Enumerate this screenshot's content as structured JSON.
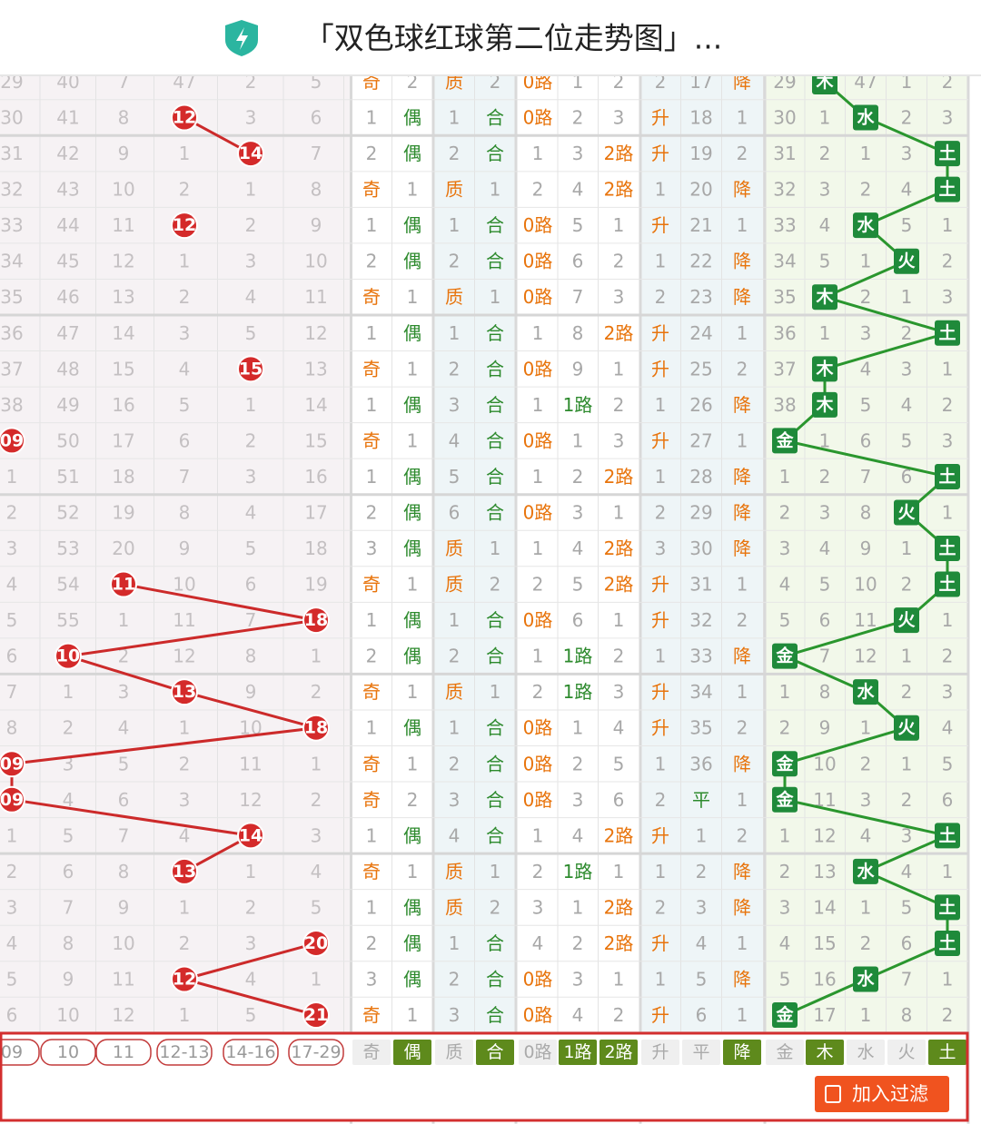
{
  "header": {
    "title": "「双色球红球第二位走势图」..."
  },
  "table": {
    "rows": [
      [
        "29",
        "40",
        "7",
        "47",
        "2",
        "5",
        "奇",
        "2",
        "质",
        "2",
        "0路",
        "1",
        "2",
        "2",
        "17",
        "降",
        "29",
        "木",
        "47",
        "1",
        "2"
      ],
      [
        "30",
        "41",
        "8",
        {
          "text": "12",
          "ball": true
        },
        "3",
        "6",
        "1",
        "偶",
        "1",
        "合",
        "0路",
        "2",
        "3",
        "升",
        "18",
        "1",
        "30",
        "1",
        "水",
        "2",
        "3"
      ],
      [
        "31",
        "42",
        "9",
        "1",
        {
          "text": "14",
          "ball": true
        },
        "7",
        "2",
        "偶",
        "2",
        "合",
        "1",
        "3",
        "2路",
        "升",
        "19",
        "2",
        "31",
        "2",
        "1",
        "3",
        "土"
      ],
      [
        "32",
        "43",
        "10",
        "2",
        "1",
        "8",
        "奇",
        "1",
        "质",
        "1",
        "2",
        "4",
        "2路",
        "1",
        "20",
        "降",
        "32",
        "3",
        "2",
        "4",
        "土"
      ],
      [
        "33",
        "44",
        "11",
        {
          "text": "12",
          "ball": true
        },
        "2",
        "9",
        "1",
        "偶",
        "1",
        "合",
        "0路",
        "5",
        "1",
        "升",
        "21",
        "1",
        "33",
        "4",
        "水",
        "5",
        "1"
      ],
      [
        "34",
        "45",
        "12",
        "1",
        "3",
        "10",
        "2",
        "偶",
        "2",
        "合",
        "0路",
        "6",
        "2",
        "1",
        "22",
        "降",
        "34",
        "5",
        "1",
        "火",
        "2"
      ],
      [
        "35",
        "46",
        "13",
        "2",
        "4",
        "11",
        "奇",
        "1",
        "质",
        "1",
        "0路",
        "7",
        "3",
        "2",
        "23",
        "降",
        "35",
        "木",
        "2",
        "1",
        "3"
      ],
      [
        "36",
        "47",
        "14",
        "3",
        "5",
        "12",
        "1",
        "偶",
        "1",
        "合",
        "1",
        "8",
        "2路",
        "升",
        "24",
        "1",
        "36",
        "1",
        "3",
        "2",
        "土"
      ],
      [
        "37",
        "48",
        "15",
        "4",
        {
          "text": "15",
          "ball": true
        },
        "13",
        "奇",
        "1",
        "2",
        "合",
        "0路",
        "9",
        "1",
        "升",
        "25",
        "2",
        "37",
        "木",
        "4",
        "3",
        "1"
      ],
      [
        "38",
        "49",
        "16",
        "5",
        "1",
        "14",
        "1",
        "偶",
        "3",
        "合",
        "1",
        "1路",
        "2",
        "1",
        "26",
        "降",
        "38",
        "木",
        "5",
        "4",
        "2"
      ],
      [
        {
          "text": "09",
          "ball": true
        },
        "50",
        "17",
        "6",
        "2",
        "15",
        "奇",
        "1",
        "4",
        "合",
        "0路",
        "1",
        "3",
        "升",
        "27",
        "1",
        "金",
        "1",
        "6",
        "5",
        "3"
      ],
      [
        "1",
        "51",
        "18",
        "7",
        "3",
        "16",
        "1",
        "偶",
        "5",
        "合",
        "1",
        "2",
        "2路",
        "1",
        "28",
        "降",
        "1",
        "2",
        "7",
        "6",
        "土"
      ],
      [
        "2",
        "52",
        "19",
        "8",
        "4",
        "17",
        "2",
        "偶",
        "6",
        "合",
        "0路",
        "3",
        "1",
        "2",
        "29",
        "降",
        "2",
        "3",
        "8",
        "火",
        "1"
      ],
      [
        "3",
        "53",
        "20",
        "9",
        "5",
        "18",
        "3",
        "偶",
        "质",
        "1",
        "1",
        "4",
        "2路",
        "3",
        "30",
        "降",
        "3",
        "4",
        "9",
        "1",
        "土"
      ],
      [
        "4",
        "54",
        {
          "text": "11",
          "ball": true
        },
        "10",
        "6",
        "19",
        "奇",
        "1",
        "质",
        "2",
        "2",
        "5",
        "2路",
        "升",
        "31",
        "1",
        "4",
        "5",
        "10",
        "2",
        "土"
      ],
      [
        "5",
        "55",
        "1",
        "11",
        "7",
        {
          "text": "18",
          "ball": true
        },
        "1",
        "偶",
        "1",
        "合",
        "0路",
        "6",
        "1",
        "升",
        "32",
        "2",
        "5",
        "6",
        "11",
        "火",
        "1"
      ],
      [
        "6",
        {
          "text": "10",
          "ball": true
        },
        "2",
        "12",
        "8",
        "1",
        "2",
        "偶",
        "2",
        "合",
        "1",
        "1路",
        "2",
        "1",
        "33",
        "降",
        "金",
        "7",
        "12",
        "1",
        "2"
      ],
      [
        "7",
        "1",
        "3",
        {
          "text": "13",
          "ball": true
        },
        "9",
        "2",
        "奇",
        "1",
        "质",
        "1",
        "2",
        "1路",
        "3",
        "升",
        "34",
        "1",
        "1",
        "8",
        "水",
        "2",
        "3"
      ],
      [
        "8",
        "2",
        "4",
        "1",
        "10",
        {
          "text": "18",
          "ball": true
        },
        "1",
        "偶",
        "1",
        "合",
        "0路",
        "1",
        "4",
        "升",
        "35",
        "2",
        "2",
        "9",
        "1",
        "火",
        "4"
      ],
      [
        {
          "text": "09",
          "ball": true
        },
        "3",
        "5",
        "2",
        "11",
        "1",
        "奇",
        "1",
        "2",
        "合",
        "0路",
        "2",
        "5",
        "1",
        "36",
        "降",
        "金",
        "10",
        "2",
        "1",
        "5"
      ],
      [
        {
          "text": "09",
          "ball": true
        },
        "4",
        "6",
        "3",
        "12",
        "2",
        "奇",
        "2",
        "3",
        "合",
        "0路",
        "3",
        "6",
        "2",
        "平",
        "1",
        "金",
        "11",
        "3",
        "2",
        "6"
      ],
      [
        "1",
        "5",
        "7",
        "4",
        {
          "text": "14",
          "ball": true
        },
        "3",
        "1",
        "偶",
        "4",
        "合",
        "1",
        "4",
        "2路",
        "升",
        "1",
        "2",
        "1",
        "12",
        "4",
        "3",
        "土"
      ],
      [
        "2",
        "6",
        "8",
        {
          "text": "13",
          "ball": true
        },
        "1",
        "4",
        "奇",
        "1",
        "质",
        "1",
        "2",
        "1路",
        "1",
        "1",
        "2",
        "降",
        "2",
        "13",
        "水",
        "4",
        "1"
      ],
      [
        "3",
        "7",
        "9",
        "1",
        "2",
        "5",
        "1",
        "偶",
        "质",
        "2",
        "3",
        "1",
        "2路",
        "2",
        "3",
        "降",
        "3",
        "14",
        "1",
        "5",
        "土"
      ],
      [
        "4",
        "8",
        "10",
        "2",
        "3",
        {
          "text": "20",
          "ball": true
        },
        "2",
        "偶",
        "1",
        "合",
        "4",
        "2",
        "2路",
        "升",
        "4",
        "1",
        "4",
        "15",
        "2",
        "6",
        "土"
      ],
      [
        "5",
        "9",
        "11",
        {
          "text": "12",
          "ball": true
        },
        "4",
        "1",
        "3",
        "偶",
        "2",
        "合",
        "0路",
        "3",
        "1",
        "1",
        "5",
        "降",
        "5",
        "16",
        "水",
        "7",
        "1"
      ],
      [
        "6",
        "10",
        "12",
        "1",
        "5",
        {
          "text": "21",
          "ball": true
        },
        "奇",
        "1",
        "3",
        "合",
        "0路",
        "4",
        "2",
        "升",
        "6",
        "1",
        "金",
        "17",
        "1",
        "8",
        "2"
      ]
    ],
    "footer": [
      {
        "text": "09",
        "selected": false
      },
      {
        "text": "10",
        "selected": false
      },
      {
        "text": "11",
        "selected": false
      },
      {
        "text": "12-13",
        "selected": false
      },
      {
        "text": "14-16",
        "selected": false
      },
      {
        "text": "17-29",
        "selected": false
      },
      {
        "text": "奇",
        "selected": false
      },
      {
        "text": "偶",
        "selected": true
      },
      {
        "text": "质",
        "selected": false
      },
      {
        "text": "合",
        "selected": true
      },
      {
        "text": "0路",
        "selected": false
      },
      {
        "text": "1路",
        "selected": true
      },
      {
        "text": "2路",
        "selected": true
      },
      {
        "text": "升",
        "selected": false
      },
      {
        "text": "平",
        "selected": false
      },
      {
        "text": "降",
        "selected": true
      },
      {
        "text": "金",
        "selected": false
      },
      {
        "text": "木",
        "selected": true
      },
      {
        "text": "水",
        "selected": false
      },
      {
        "text": "火",
        "selected": false
      },
      {
        "text": "土",
        "selected": true
      }
    ],
    "button": "加入过滤"
  }
}
